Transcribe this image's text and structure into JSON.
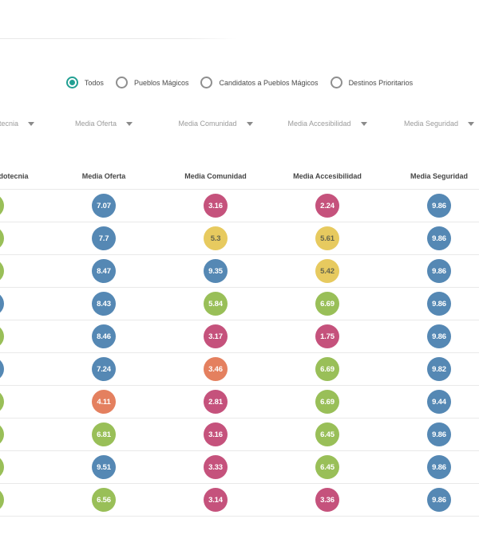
{
  "colors": {
    "teal": "#22a093",
    "blue": "#5588b4",
    "green": "#99bf58",
    "pink": "#c5527c",
    "yellow": "#e7ca5f",
    "orange": "#e4805f",
    "yellow_text": "#66664d",
    "label_gray": "#9b9b9b",
    "text_dark": "#4a4a4a",
    "divider": "#e9e9e9"
  },
  "filter_radios": {
    "options": [
      {
        "label": "Todos",
        "selected": true
      },
      {
        "label": "Pueblos Mágicos",
        "selected": false
      },
      {
        "label": "Candidatos a Pueblos Mágicos",
        "selected": false
      },
      {
        "label": "Destinos Prioritarios",
        "selected": false
      }
    ]
  },
  "sort_controls": {
    "icon": "chevron-down-icon",
    "columns": [
      {
        "label": "Media Mercadotecnia"
      },
      {
        "label": "Media Oferta"
      },
      {
        "label": "Media Comunidad"
      },
      {
        "label": "Media Accesibilidad"
      },
      {
        "label": "Media Seguridad"
      }
    ]
  },
  "table": {
    "columns": [
      "Media Mercadotecnia",
      "Media Oferta",
      "Media Comunidad",
      "Media Accesibilidad",
      "Media Seguridad"
    ],
    "rows": [
      {
        "cells": [
          {
            "value": "",
            "color": "green"
          },
          {
            "value": "7.07",
            "color": "blue"
          },
          {
            "value": "3.16",
            "color": "pink"
          },
          {
            "value": "2.24",
            "color": "pink"
          },
          {
            "value": "9.86",
            "color": "blue"
          }
        ]
      },
      {
        "cells": [
          {
            "value": "",
            "color": "green"
          },
          {
            "value": "7.7",
            "color": "blue"
          },
          {
            "value": "5.3",
            "color": "yellow"
          },
          {
            "value": "5.61",
            "color": "yellow"
          },
          {
            "value": "9.86",
            "color": "blue"
          }
        ]
      },
      {
        "cells": [
          {
            "value": "",
            "color": "green"
          },
          {
            "value": "8.47",
            "color": "blue"
          },
          {
            "value": "9.35",
            "color": "blue"
          },
          {
            "value": "5.42",
            "color": "yellow"
          },
          {
            "value": "9.86",
            "color": "blue"
          }
        ]
      },
      {
        "cells": [
          {
            "value": "",
            "color": "blue"
          },
          {
            "value": "8.43",
            "color": "blue"
          },
          {
            "value": "5.84",
            "color": "green"
          },
          {
            "value": "6.69",
            "color": "green"
          },
          {
            "value": "9.86",
            "color": "blue"
          }
        ]
      },
      {
        "cells": [
          {
            "value": "",
            "color": "green"
          },
          {
            "value": "8.46",
            "color": "blue"
          },
          {
            "value": "3.17",
            "color": "pink"
          },
          {
            "value": "1.75",
            "color": "pink"
          },
          {
            "value": "9.86",
            "color": "blue"
          }
        ]
      },
      {
        "cells": [
          {
            "value": "",
            "color": "blue"
          },
          {
            "value": "7.24",
            "color": "blue"
          },
          {
            "value": "3.46",
            "color": "orange"
          },
          {
            "value": "6.69",
            "color": "green"
          },
          {
            "value": "9.82",
            "color": "blue"
          }
        ]
      },
      {
        "cells": [
          {
            "value": "",
            "color": "green"
          },
          {
            "value": "4.11",
            "color": "orange"
          },
          {
            "value": "2.81",
            "color": "pink"
          },
          {
            "value": "6.69",
            "color": "green"
          },
          {
            "value": "9.44",
            "color": "blue"
          }
        ]
      },
      {
        "cells": [
          {
            "value": "",
            "color": "green"
          },
          {
            "value": "6.81",
            "color": "green"
          },
          {
            "value": "3.16",
            "color": "pink"
          },
          {
            "value": "6.45",
            "color": "green"
          },
          {
            "value": "9.86",
            "color": "blue"
          }
        ]
      },
      {
        "cells": [
          {
            "value": "",
            "color": "green"
          },
          {
            "value": "9.51",
            "color": "blue"
          },
          {
            "value": "3.33",
            "color": "pink"
          },
          {
            "value": "6.45",
            "color": "green"
          },
          {
            "value": "9.86",
            "color": "blue"
          }
        ]
      },
      {
        "cells": [
          {
            "value": "",
            "color": "green"
          },
          {
            "value": "6.56",
            "color": "green"
          },
          {
            "value": "3.14",
            "color": "pink"
          },
          {
            "value": "3.36",
            "color": "pink"
          },
          {
            "value": "9.86",
            "color": "blue"
          }
        ]
      }
    ]
  }
}
